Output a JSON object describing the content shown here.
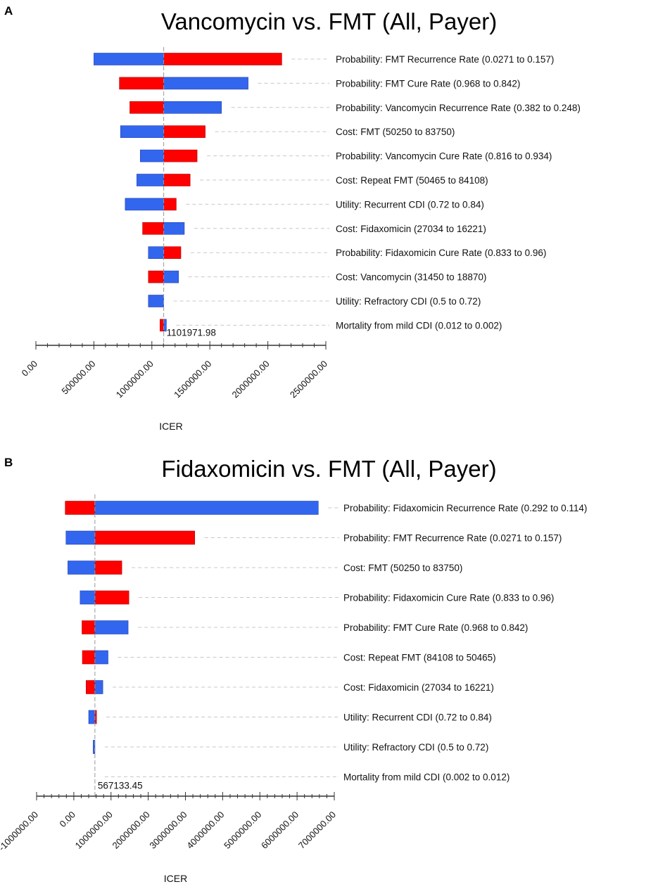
{
  "chart_data": [
    {
      "type": "bar",
      "subtype": "tornado",
      "panel_label": "A",
      "title": "Vancomycin vs. FMT (All, Payer)",
      "xlabel": "ICER",
      "ylabel": "",
      "xlim": [
        0,
        2500000
      ],
      "x_ticks": [
        0,
        500000,
        1000000,
        1500000,
        2000000,
        2500000
      ],
      "x_tick_labels": [
        "0.00",
        "500000.00",
        "1000000.00",
        "1500000.00",
        "2000000.00",
        "2500000.00"
      ],
      "base_value": 1101971.98,
      "base_label": "1101971.98",
      "series_colors": {
        "low": "#ff0000",
        "high": "#3366ee"
      },
      "bars": [
        {
          "label": "Probability: FMT Recurrence Rate (0.0271 to 0.157)",
          "red": 2120000,
          "blue": 500000
        },
        {
          "label": "Probability: FMT Cure Rate (0.968 to 0.842)",
          "red": 720000,
          "blue": 1830000
        },
        {
          "label": "Probability: Vancomycin Recurrence Rate (0.382 to 0.248)",
          "red": 810000,
          "blue": 1600000
        },
        {
          "label": "Cost: FMT (50250 to 83750)",
          "red": 1460000,
          "blue": 730000
        },
        {
          "label": "Probability: Vancomycin Cure Rate (0.816 to 0.934)",
          "red": 1390000,
          "blue": 900000
        },
        {
          "label": "Cost: Repeat FMT (50465 to 84108)",
          "red": 1330000,
          "blue": 870000
        },
        {
          "label": "Utility: Recurrent CDI (0.72 to 0.84)",
          "red": 1210000,
          "blue": 770000
        },
        {
          "label": "Cost: Fidaxomicin (27034 to 16221)",
          "red": 920000,
          "blue": 1280000
        },
        {
          "label": "Probability: Fidaxomicin Cure Rate (0.833 to 0.96)",
          "red": 1250000,
          "blue": 970000
        },
        {
          "label": "Cost: Vancomycin (31450 to 18870)",
          "red": 970000,
          "blue": 1230000
        },
        {
          "label": "Utility: Refractory CDI (0.5 to 0.72)",
          "red": 1101971.98,
          "blue": 970000
        },
        {
          "label": "Mortality from mild CDI (0.012 to 0.002)",
          "red": 1070000,
          "blue": 1125000
        }
      ]
    },
    {
      "type": "bar",
      "subtype": "tornado",
      "panel_label": "B",
      "title": "Fidaxomicin vs. FMT (All, Payer)",
      "xlabel": "ICER",
      "ylabel": "",
      "xlim": [
        -1000000,
        7000000
      ],
      "x_ticks": [
        -1000000,
        0,
        1000000,
        2000000,
        3000000,
        4000000,
        5000000,
        6000000,
        7000000
      ],
      "x_tick_labels": [
        "-1000000.00",
        "0.00",
        "1000000.00",
        "2000000.00",
        "3000000.00",
        "4000000.00",
        "5000000.00",
        "6000000.00",
        "7000000.00"
      ],
      "base_value": 567133.45,
      "base_label": "567133.45",
      "series_colors": {
        "low": "#ff0000",
        "high": "#3366ee"
      },
      "bars": [
        {
          "label": "Probability: Fidaxomicin Recurrence Rate (0.292 to 0.114)",
          "red": -230000,
          "blue": 6570000
        },
        {
          "label": "Probability: FMT Recurrence Rate (0.0271 to 0.157)",
          "red": 3250000,
          "blue": -210000
        },
        {
          "label": "Cost: FMT (50250 to 83750)",
          "red": 1290000,
          "blue": -160000
        },
        {
          "label": "Probability: Fidaxomicin Cure Rate (0.833 to 0.96)",
          "red": 1480000,
          "blue": 170000
        },
        {
          "label": "Probability: FMT Cure Rate (0.968 to 0.842)",
          "red": 220000,
          "blue": 1460000
        },
        {
          "label": "Cost: Repeat FMT (84108 to 50465)",
          "red": 230000,
          "blue": 920000
        },
        {
          "label": "Cost: Fidaxomicin (27034 to 16221)",
          "red": 330000,
          "blue": 780000
        },
        {
          "label": "Utility: Recurrent CDI (0.72 to 0.84)",
          "red": 610000,
          "blue": 400000
        },
        {
          "label": "Utility: Refractory CDI (0.5 to 0.72)",
          "red": 567133.45,
          "blue": 520000
        },
        {
          "label": "Mortality from mild CDI (0.002 to 0.012)",
          "red": 567133.45,
          "blue": 567133.45
        }
      ]
    }
  ]
}
